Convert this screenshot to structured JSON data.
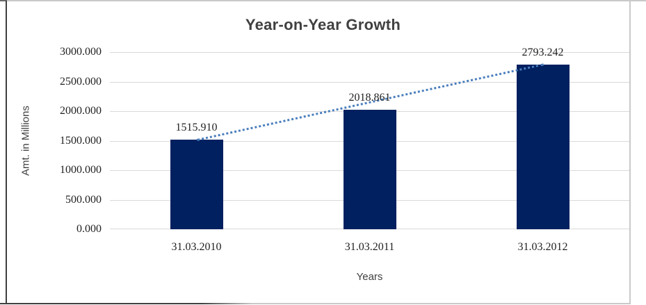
{
  "chart_data": {
    "type": "bar",
    "title": "Year-on-Year Growth",
    "xlabel": "Years",
    "ylabel": "Amt. in Millions",
    "categories": [
      "31.03.2010",
      "31.03.2011",
      "31.03.2012"
    ],
    "values": [
      1515.91,
      2018.861,
      2793.242
    ],
    "value_labels": [
      "1515.910",
      "2018.861",
      "2793.242"
    ],
    "ylim": [
      0,
      3000
    ],
    "ytick_step": 500,
    "ytick_labels": [
      "0.000",
      "500.000",
      "1000.000",
      "1500.000",
      "2000.000",
      "2500.000",
      "3000.000"
    ],
    "grid": "horizontal",
    "legend_position": "none",
    "trendline": {
      "style": "dotted",
      "from_category_index": 0,
      "to_category_index": 2,
      "color": "#4a7ebc"
    },
    "colors": {
      "bar": "#002060",
      "trend_dots": "#4a7ebc",
      "gridline": "#d9d9d9",
      "title_text": "#404040",
      "axis_title_text": "#404040",
      "tick_text": "#1f1f1f",
      "frame_dark": "#3f3f3f",
      "frame_light": "#c9c9c9"
    }
  }
}
